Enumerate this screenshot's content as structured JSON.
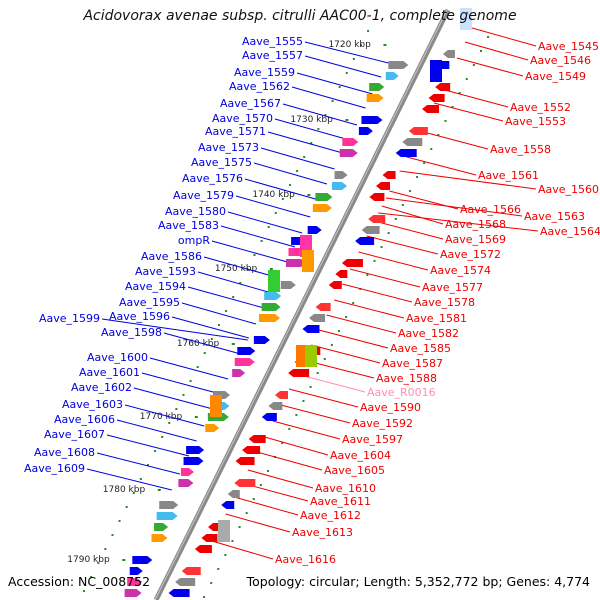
{
  "title": "Acidovorax avenae subsp. citrulli AAC00-1, complete genome",
  "accession_text": "Accession: NC_008752",
  "topology_text": "Topology: circular; Length: 5,352,772 bp; Genes: 4,774",
  "colors": {
    "backbone": "#8a8a8a",
    "backbone_highlight": "#ffffff",
    "minus_strand_label": "#0000dd",
    "plus_strand_label": "#ee0000",
    "rna_label": "#ff8fb0",
    "tick_dots": "#2a8a2a"
  },
  "kbp_ticks": [
    "1720 kbp",
    "1730 kbp",
    "1740 kbp",
    "1750 kbp",
    "1760 kbp",
    "1770 kbp",
    "1780 kbp",
    "1790 kbp"
  ],
  "left_labels": [
    "Aave_1555",
    "Aave_1557",
    "Aave_1559",
    "Aave_1562",
    "Aave_1567",
    "Aave_1570",
    "Aave_1571",
    "Aave_1573",
    "Aave_1575",
    "Aave_1576",
    "Aave_1579",
    "Aave_1580",
    "Aave_1583",
    "ompR",
    "Aave_1586",
    "Aave_1593",
    "Aave_1594",
    "Aave_1595",
    "Aave_1596",
    "Aave_1599",
    "Aave_1598",
    "Aave_1600",
    "Aave_1601",
    "Aave_1602",
    "Aave_1603",
    "Aave_1606",
    "Aave_1607",
    "Aave_1608",
    "Aave_1609"
  ],
  "right_labels": [
    {
      "text": "Aave_1545",
      "kind": "gene"
    },
    {
      "text": "Aave_1546",
      "kind": "gene"
    },
    {
      "text": "Aave_1549",
      "kind": "gene"
    },
    {
      "text": "Aave_1552",
      "kind": "gene"
    },
    {
      "text": "Aave_1553",
      "kind": "gene"
    },
    {
      "text": "Aave_1558",
      "kind": "gene"
    },
    {
      "text": "Aave_1561",
      "kind": "gene"
    },
    {
      "text": "Aave_1560",
      "kind": "gene"
    },
    {
      "text": "Aave_1566",
      "kind": "gene"
    },
    {
      "text": "Aave_1563",
      "kind": "gene"
    },
    {
      "text": "Aave_1568",
      "kind": "gene"
    },
    {
      "text": "Aave_1564",
      "kind": "gene"
    },
    {
      "text": "Aave_1569",
      "kind": "gene"
    },
    {
      "text": "Aave_1572",
      "kind": "gene"
    },
    {
      "text": "Aave_1574",
      "kind": "gene"
    },
    {
      "text": "Aave_1577",
      "kind": "gene"
    },
    {
      "text": "Aave_1578",
      "kind": "gene"
    },
    {
      "text": "Aave_1581",
      "kind": "gene"
    },
    {
      "text": "Aave_1582",
      "kind": "gene"
    },
    {
      "text": "Aave_1585",
      "kind": "gene"
    },
    {
      "text": "Aave_1587",
      "kind": "gene"
    },
    {
      "text": "Aave_1588",
      "kind": "gene"
    },
    {
      "text": "Aave_R0016",
      "kind": "rna"
    },
    {
      "text": "Aave_1590",
      "kind": "gene"
    },
    {
      "text": "Aave_1592",
      "kind": "gene"
    },
    {
      "text": "Aave_1597",
      "kind": "gene"
    },
    {
      "text": "Aave_1604",
      "kind": "gene"
    },
    {
      "text": "Aave_1605",
      "kind": "gene"
    },
    {
      "text": "Aave_1610",
      "kind": "gene"
    },
    {
      "text": "Aave_1611",
      "kind": "gene"
    },
    {
      "text": "Aave_1612",
      "kind": "gene"
    },
    {
      "text": "Aave_1613",
      "kind": "gene"
    },
    {
      "text": "Aave_1616",
      "kind": "gene"
    }
  ]
}
